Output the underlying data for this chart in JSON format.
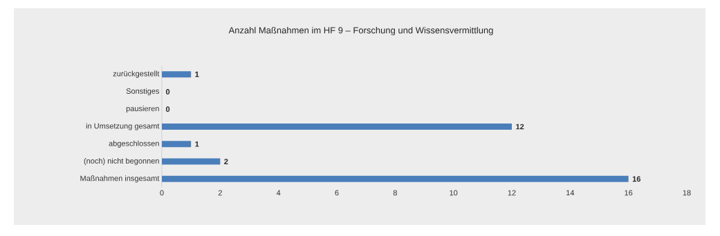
{
  "chart_data": {
    "type": "bar",
    "orientation": "horizontal",
    "title": "Anzahl Maßnahmen im HF 9 – Forschung und Wissensvermittlung",
    "categories": [
      "zurückgestellt",
      "Sonstiges",
      "pausieren",
      "in Umsetzung gesamt",
      "abgeschlossen",
      "(noch) nicht begonnen",
      "Maßnahmen insgesamt"
    ],
    "values": [
      1,
      0,
      0,
      12,
      1,
      2,
      16
    ],
    "color": "#4a7ebb",
    "xlim": [
      0,
      18
    ],
    "xticks": [
      0,
      2,
      4,
      6,
      8,
      10,
      12,
      14,
      16,
      18
    ],
    "data_labels": true
  }
}
